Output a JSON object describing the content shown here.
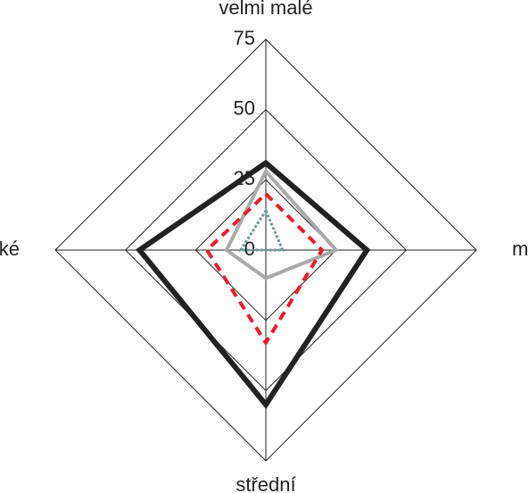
{
  "chart_data": {
    "type": "radar",
    "categories": [
      "velmi malé",
      "malé",
      "střední",
      "velké"
    ],
    "rlim": [
      0,
      75
    ],
    "rticks": [
      0,
      25,
      50,
      75
    ],
    "series": [
      {
        "color": "#222222",
        "style": "solid",
        "width": 6,
        "values": [
          31,
          36,
          55,
          45
        ]
      },
      {
        "color": "#aaaaaa",
        "style": "solid",
        "width": 4,
        "values": [
          28,
          25,
          10,
          14
        ]
      },
      {
        "color": "#ee1c25",
        "style": "dashed",
        "width": 4,
        "values": [
          20,
          20,
          33,
          21
        ]
      },
      {
        "color": "#6f9a9a",
        "style": "dotted",
        "width": 3,
        "values": [
          14,
          6,
          0,
          9
        ]
      }
    ]
  }
}
